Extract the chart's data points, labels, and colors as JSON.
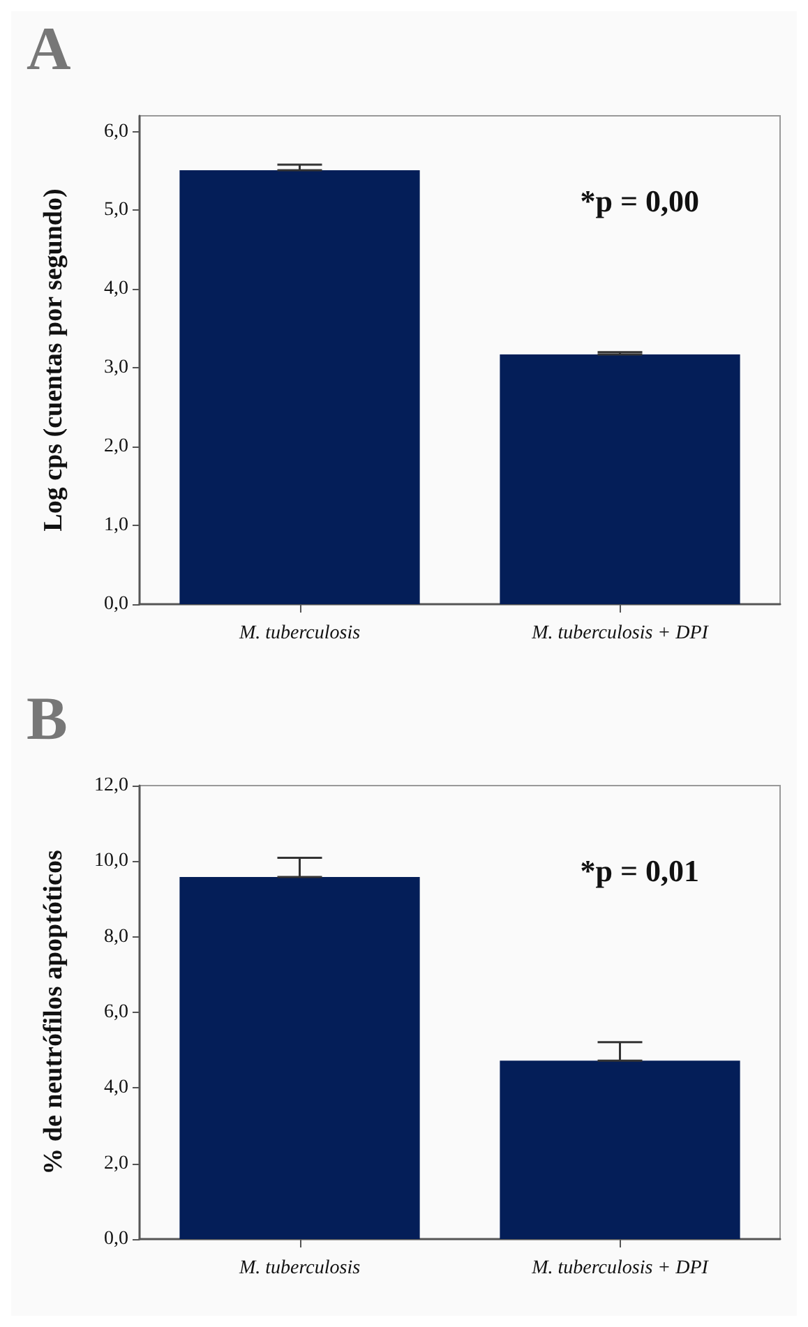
{
  "chart_data": [
    {
      "type": "bar",
      "title": "A",
      "ylabel": "Log cps (cuentas por segundo)",
      "categories": [
        "M. tuberculosis",
        "M. tuberculosis + DPI"
      ],
      "values": [
        5.51,
        3.17
      ],
      "errors": [
        [
          5.51,
          5.58
        ],
        [
          3.17,
          3.2
        ]
      ],
      "color": "#041e58",
      "ylim": [
        0,
        6.2
      ],
      "yticks": [
        {
          "value": 0,
          "label": "0,0"
        },
        {
          "value": 1,
          "label": "1,0"
        },
        {
          "value": 2,
          "label": "2,0"
        },
        {
          "value": 3,
          "label": "3,0"
        },
        {
          "value": 4,
          "label": "4,0"
        },
        {
          "value": 5,
          "label": "5,0"
        },
        {
          "value": 6,
          "label": "6,0"
        }
      ],
      "annotations": [
        "*p = 0,00"
      ],
      "grid": false
    },
    {
      "type": "bar",
      "title": "B",
      "ylabel": "% de neutrófilos apoptóticos",
      "categories": [
        "M. tuberculosis",
        "M. tuberculosis + DPI"
      ],
      "values": [
        9.58,
        4.72
      ],
      "errors": [
        [
          9.58,
          10.09
        ],
        [
          4.72,
          5.21
        ]
      ],
      "color": "#041e58",
      "ylim": [
        0,
        12
      ],
      "yticks": [
        {
          "value": 0,
          "label": "0,0"
        },
        {
          "value": 2,
          "label": "2,0"
        },
        {
          "value": 4,
          "label": "4,0"
        },
        {
          "value": 6,
          "label": "6,0"
        },
        {
          "value": 8,
          "label": "8,0"
        },
        {
          "value": 10,
          "label": "10,0"
        },
        {
          "value": 12,
          "label": "12,0"
        }
      ],
      "annotations": [
        "*p = 0,01"
      ],
      "grid": false
    }
  ]
}
